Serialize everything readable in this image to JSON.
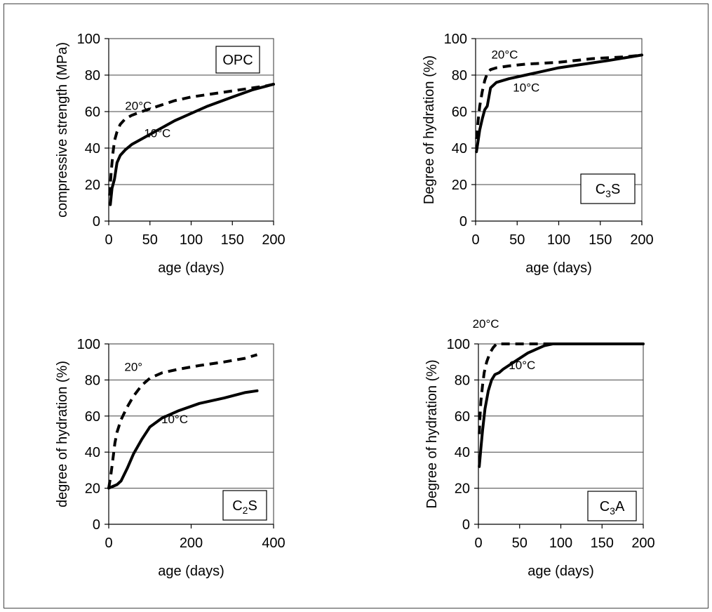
{
  "chart_data": [
    {
      "type": "line",
      "panel_label": "OPC",
      "ylabel": "compressive strength (MPa)",
      "xlabel": "age (days)",
      "xlim": [
        0,
        200
      ],
      "ylim": [
        0,
        100
      ],
      "xticks": [
        0,
        50,
        100,
        150,
        200
      ],
      "yticks": [
        0,
        20,
        40,
        60,
        80,
        100
      ],
      "grid": true,
      "series": [
        {
          "name": "20°C",
          "style": "dashed",
          "x": [
            1,
            3,
            5,
            7,
            10,
            14,
            20,
            28,
            40,
            60,
            80,
            100,
            130,
            160,
            190,
            200
          ],
          "y": [
            14,
            27,
            37,
            44,
            49,
            53,
            56,
            58,
            60,
            63,
            66,
            68,
            70,
            72,
            74,
            75
          ]
        },
        {
          "name": "10°C",
          "style": "solid",
          "x": [
            2,
            4,
            7,
            10,
            14,
            20,
            28,
            40,
            60,
            80,
            100,
            120,
            150,
            175,
            200
          ],
          "y": [
            9,
            18,
            23,
            32,
            36,
            39,
            42,
            45,
            50,
            55,
            59,
            63,
            68,
            72,
            75
          ]
        }
      ],
      "annotations": [
        {
          "text": "20°C",
          "x": 36,
          "y": 61
        },
        {
          "text": "10°C",
          "x": 59,
          "y": 46
        }
      ]
    },
    {
      "type": "line",
      "panel_label": "C3S",
      "ylabel": "Degree of hydration (%)",
      "xlabel": "age (days)",
      "xlim": [
        0,
        200
      ],
      "ylim": [
        0,
        100
      ],
      "xticks": [
        0,
        50,
        100,
        150,
        200
      ],
      "yticks": [
        0,
        20,
        40,
        60,
        80,
        100
      ],
      "grid": true,
      "series": [
        {
          "name": "20°C",
          "style": "dashed",
          "x": [
            1,
            3,
            5,
            8,
            11,
            14,
            18,
            25,
            40,
            60,
            100,
            140,
            180,
            200
          ],
          "y": [
            45,
            55,
            63,
            71,
            77,
            81,
            83,
            84,
            85,
            86,
            87,
            89,
            90,
            91
          ]
        },
        {
          "name": "10°C",
          "style": "solid",
          "x": [
            1,
            3,
            5,
            8,
            11,
            14,
            18,
            25,
            40,
            60,
            80,
            100,
            130,
            160,
            200
          ],
          "y": [
            38,
            44,
            50,
            56,
            61,
            63,
            73,
            76,
            78,
            80,
            82,
            84,
            86,
            88,
            91
          ]
        }
      ],
      "annotations": [
        {
          "text": "20°C",
          "x": 35,
          "y": 89
        },
        {
          "text": "10°C",
          "x": 61,
          "y": 71
        }
      ]
    },
    {
      "type": "line",
      "panel_label": "C2S",
      "ylabel": "degree of hydration (%)",
      "xlabel": "age (days)",
      "xlim": [
        0,
        400
      ],
      "ylim": [
        0,
        100
      ],
      "xticks": [
        0,
        200,
        400
      ],
      "yticks": [
        0,
        20,
        40,
        60,
        80,
        100
      ],
      "grid": true,
      "series": [
        {
          "name": "20°",
          "style": "dashed",
          "x": [
            0,
            5,
            10,
            15,
            20,
            30,
            45,
            60,
            80,
            100,
            130,
            170,
            220,
            280,
            330,
            360
          ],
          "y": [
            20,
            27,
            36,
            45,
            51,
            58,
            65,
            71,
            77,
            81,
            84,
            86,
            88,
            90,
            92,
            94
          ]
        },
        {
          "name": "10°C",
          "style": "solid",
          "x": [
            0,
            10,
            20,
            30,
            45,
            60,
            80,
            100,
            130,
            170,
            220,
            280,
            330,
            360
          ],
          "y": [
            20,
            21,
            22,
            24,
            31,
            39,
            47,
            54,
            59,
            63,
            67,
            70,
            73,
            74
          ]
        }
      ],
      "annotations": [
        {
          "text": "20°",
          "x": 60,
          "y": 85
        },
        {
          "text": "10°C",
          "x": 160,
          "y": 56
        }
      ]
    },
    {
      "type": "line",
      "panel_label": "C3A",
      "ylabel": "Degree of hydration (%)",
      "xlabel": "age (days)",
      "xlim": [
        0,
        200
      ],
      "ylim": [
        0,
        100
      ],
      "xticks": [
        0,
        50,
        100,
        150,
        200
      ],
      "yticks": [
        0,
        20,
        40,
        60,
        80,
        100
      ],
      "grid": true,
      "series": [
        {
          "name": "20°C",
          "style": "dashed",
          "x": [
            1,
            2,
            3,
            5,
            7,
            10,
            14,
            18,
            22,
            28,
            40,
            60,
            100,
            200
          ],
          "y": [
            50,
            60,
            68,
            77,
            84,
            90,
            95,
            98,
            100,
            100,
            100,
            100,
            100,
            100
          ]
        },
        {
          "name": "10°C",
          "style": "solid",
          "x": [
            1,
            3,
            5,
            8,
            12,
            16,
            20,
            25,
            30,
            40,
            50,
            60,
            70,
            80,
            90,
            95,
            100,
            150,
            200
          ],
          "y": [
            32,
            42,
            52,
            64,
            74,
            80,
            83,
            84,
            86,
            89,
            92,
            95,
            97,
            99,
            100,
            100,
            100,
            100,
            100
          ]
        }
      ],
      "annotations": [
        {
          "text": "20°C",
          "x": 9,
          "y": 109
        },
        {
          "text": "10°C",
          "x": 53,
          "y": 86
        }
      ]
    }
  ]
}
